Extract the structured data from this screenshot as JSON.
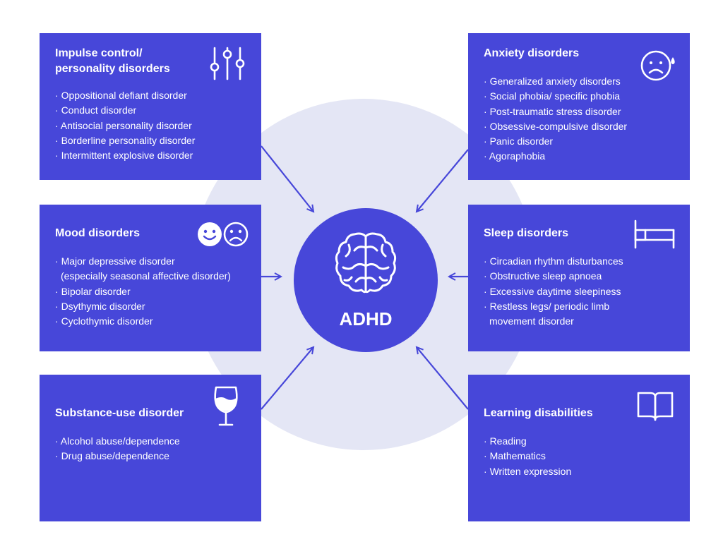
{
  "center": {
    "label": "ADHD",
    "icon": "brain-icon"
  },
  "colors": {
    "card": "#4747d9",
    "background_circle": "#e4e6f5",
    "text": "#ffffff"
  },
  "cards": {
    "impulse": {
      "title_line1": "Impulse control/",
      "title_line2": "personality disorders",
      "icon": "sliders-icon",
      "items": [
        "Oppositional defiant disorder",
        "Conduct disorder",
        "Antisocial personality disorder",
        "Borderline personality disorder",
        "Intermittent explosive disorder"
      ]
    },
    "anxiety": {
      "title": "Anxiety disorders",
      "icon": "worried-face-icon",
      "items": [
        "Generalized anxiety disorders",
        "Social phobia/ specific phobia",
        "Post-traumatic stress disorder",
        "Obsessive-compulsive disorder",
        "Panic disorder",
        "Agoraphobia"
      ]
    },
    "mood": {
      "title": "Mood disorders",
      "icon": "happy-sad-faces-icon",
      "items": [
        "Major depressive disorder",
        "(especially seasonal affective disorder)",
        "Bipolar disorder",
        "Dsythymic disorder",
        "Cyclothymic disorder"
      ]
    },
    "sleep": {
      "title": "Sleep disorders",
      "icon": "bed-icon",
      "items": [
        "Circadian rhythm disturbances",
        "Obstructive sleep apnoea",
        "Excessive daytime sleepiness",
        "Restless legs/ periodic limb",
        "movement disorder"
      ]
    },
    "substance": {
      "title": "Substance-use disorder",
      "icon": "wine-glass-icon",
      "items": [
        "Alcohol abuse/dependence",
        "Drug abuse/dependence"
      ]
    },
    "learning": {
      "title": "Learning disabilities",
      "icon": "open-book-icon",
      "items": [
        "Reading",
        "Mathematics",
        "Written expression"
      ]
    }
  }
}
